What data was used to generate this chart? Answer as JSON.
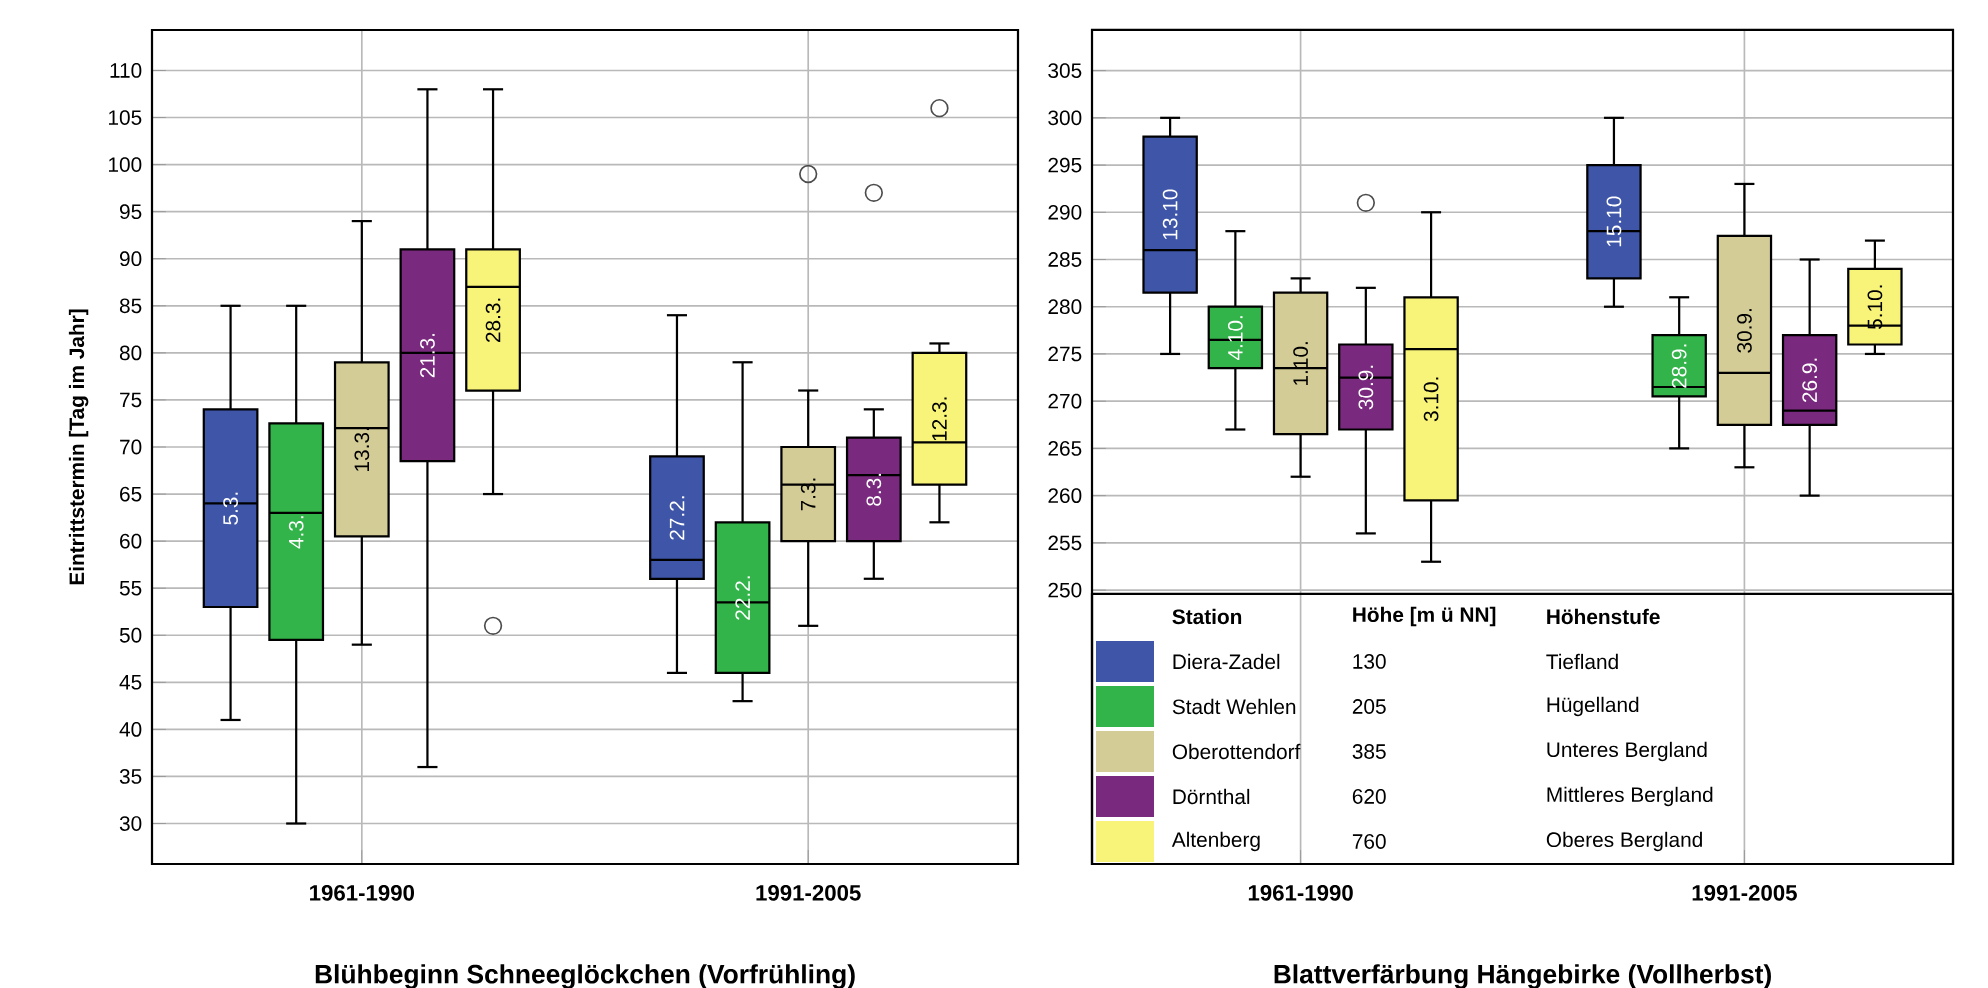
{
  "chart_data": [
    {
      "type": "box",
      "xlabel": "Blühbeginn Schneeglöckchen (Vorfrühling)",
      "ylabel": "Eintrittstermin [Tag im Jahr]",
      "categories": [
        "1961-1990",
        "1991-2005"
      ],
      "ylim": [
        25.7,
        114.3
      ],
      "yticks": [
        30,
        35,
        40,
        45,
        50,
        55,
        60,
        65,
        70,
        75,
        80,
        85,
        90,
        95,
        100,
        105,
        110
      ],
      "grid": true,
      "series": [
        {
          "color": "#3f56a8",
          "value_labels": [
            "5.3.",
            "27.2."
          ],
          "boxes": [
            {
              "low": 41,
              "q1": 53,
              "median": 64,
              "q3": 74,
              "high": 85
            },
            {
              "low": 46,
              "q1": 56,
              "median": 58,
              "q3": 69,
              "high": 84
            }
          ]
        },
        {
          "color": "#33b44a",
          "value_labels": [
            "4.3.",
            "22.2."
          ],
          "boxes": [
            {
              "low": 30,
              "q1": 49.5,
              "median": 63,
              "q3": 72.5,
              "high": 85
            },
            {
              "low": 43,
              "q1": 46,
              "median": 53.5,
              "q3": 62,
              "high": 79
            }
          ]
        },
        {
          "color": "#d4cc96",
          "value_labels": [
            "13.3.",
            "7.3."
          ],
          "boxes": [
            {
              "low": 49,
              "q1": 60.5,
              "median": 72,
              "q3": 79,
              "high": 94
            },
            {
              "low": 51,
              "q1": 60,
              "median": 66,
              "q3": 70,
              "high": 76,
              "outliers": [
                99
              ]
            }
          ]
        },
        {
          "color": "#7a2a7e",
          "value_labels": [
            "21.3.",
            "8.3."
          ],
          "boxes": [
            {
              "low": 36,
              "q1": 68.5,
              "median": 80,
              "q3": 91,
              "high": 108
            },
            {
              "low": 56,
              "q1": 60,
              "median": 67,
              "q3": 71,
              "high": 74,
              "outliers": [
                97
              ]
            }
          ]
        },
        {
          "color": "#f8f47a",
          "value_labels": [
            "28.3.",
            "12.3."
          ],
          "boxes": [
            {
              "low": 65,
              "q1": 76,
              "median": 87,
              "q3": 91,
              "high": 108,
              "outliers": [
                51
              ]
            },
            {
              "low": 62,
              "q1": 66,
              "median": 70.5,
              "q3": 80,
              "high": 81,
              "outliers": [
                106
              ]
            }
          ]
        }
      ]
    },
    {
      "type": "box",
      "xlabel": "Blattverfärbung Hängebirke (Vollherbst)",
      "categories": [
        "1961-1990",
        "1991-2005"
      ],
      "ylim": [
        221,
        309.3
      ],
      "yticks": [
        250,
        255,
        260,
        265,
        270,
        275,
        280,
        285,
        290,
        295,
        300,
        305
      ],
      "grid": true,
      "legend": "bottom",
      "legend_title": "Station",
      "annotations": [
        "Höhe [m ü NN]",
        "Höhenstufe",
        "130",
        "Tiefland",
        "205",
        "Hügelland",
        "385",
        "Unteres Bergland",
        "620",
        "Mittleres Bergland",
        "760",
        "Oberes Bergland"
      ],
      "series": [
        {
          "name": "Diera-Zadel",
          "color": "#3f56a8",
          "value_labels": [
            "13.10",
            "15.10"
          ],
          "boxes": [
            {
              "low": 275,
              "q1": 281.5,
              "median": 286,
              "q3": 298,
              "high": 300
            },
            {
              "low": 280,
              "q1": 283,
              "median": 288,
              "q3": 295,
              "high": 300
            }
          ]
        },
        {
          "name": "Stadt Wehlen",
          "color": "#33b44a",
          "value_labels": [
            "4.10.",
            "28.9."
          ],
          "boxes": [
            {
              "low": 267,
              "q1": 273.5,
              "median": 276.5,
              "q3": 280,
              "high": 288
            },
            {
              "low": 265,
              "q1": 270.5,
              "median": 271.5,
              "q3": 277,
              "high": 281
            }
          ]
        },
        {
          "name": "Oberottendorf",
          "color": "#d4cc96",
          "value_labels": [
            "1.10.",
            "30.9."
          ],
          "boxes": [
            {
              "low": 262,
              "q1": 266.5,
              "median": 273.5,
              "q3": 281.5,
              "high": 283
            },
            {
              "low": 263,
              "q1": 267.5,
              "median": 273,
              "q3": 287.5,
              "high": 293
            }
          ]
        },
        {
          "name": "Dörnthal",
          "color": "#7a2a7e",
          "value_labels": [
            "30.9.",
            "26.9."
          ],
          "boxes": [
            {
              "low": 256,
              "q1": 267,
              "median": 272.5,
              "q3": 276,
              "high": 282,
              "outliers": [
                291
              ]
            },
            {
              "low": 260,
              "q1": 267.5,
              "median": 269,
              "q3": 277,
              "high": 285
            }
          ]
        },
        {
          "name": "Altenberg",
          "color": "#f8f47a",
          "value_labels": [
            "3.10.",
            "5.10."
          ],
          "boxes": [
            {
              "low": 253,
              "q1": 259.5,
              "median": 275.5,
              "q3": 281,
              "high": 290
            },
            {
              "low": 275,
              "q1": 276,
              "median": 278,
              "q3": 284,
              "high": 287
            }
          ]
        }
      ]
    }
  ]
}
